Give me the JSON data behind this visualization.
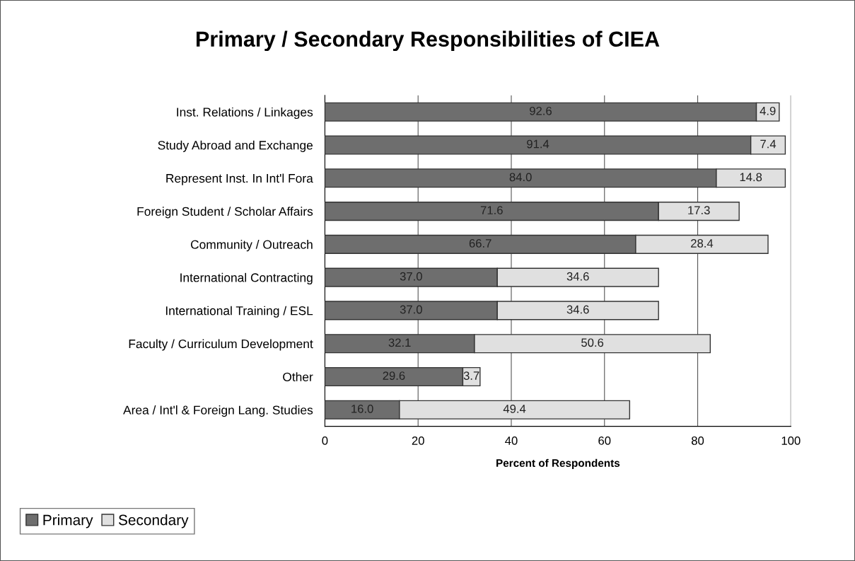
{
  "chart_data": {
    "type": "bar",
    "orientation": "horizontal",
    "stacked": true,
    "title": "Primary / Secondary Responsibilities of CIEA",
    "xlabel": "Percent of Respondents",
    "categories": [
      "Inst. Relations / Linkages",
      "Study Abroad and Exchange",
      "Represent Inst. In Int'l Fora",
      "Foreign Student / Scholar Affairs",
      "Community / Outreach",
      "International Contracting",
      "International Training / ESL",
      "Faculty / Curriculum Development",
      "Other",
      "Area / Int'l & Foreign Lang. Studies"
    ],
    "series": [
      {
        "name": "Primary",
        "color": "#6e6e6e",
        "values": [
          92.6,
          91.4,
          84.0,
          71.6,
          66.7,
          37.0,
          37.0,
          32.1,
          29.6,
          16.0
        ],
        "value_labels": [
          "92.6",
          "91.4",
          "84.0",
          "71.6",
          "66.7",
          "37.0",
          "37.0",
          "32.1",
          "29.6",
          "16.0"
        ]
      },
      {
        "name": "Secondary",
        "color": "#e0e0e0",
        "values": [
          4.9,
          7.4,
          14.8,
          17.3,
          28.4,
          34.6,
          34.6,
          50.6,
          3.7,
          49.4
        ],
        "value_labels": [
          "4.9",
          "7.4",
          "14.8",
          "17.3",
          "28.4",
          "34.6",
          "34.6",
          "50.6",
          "3.7",
          "49.4"
        ]
      }
    ],
    "xlim": [
      0,
      100
    ],
    "xticks": [
      0,
      20,
      40,
      60,
      80,
      100
    ],
    "grid": "x",
    "legend": "bottom left"
  }
}
